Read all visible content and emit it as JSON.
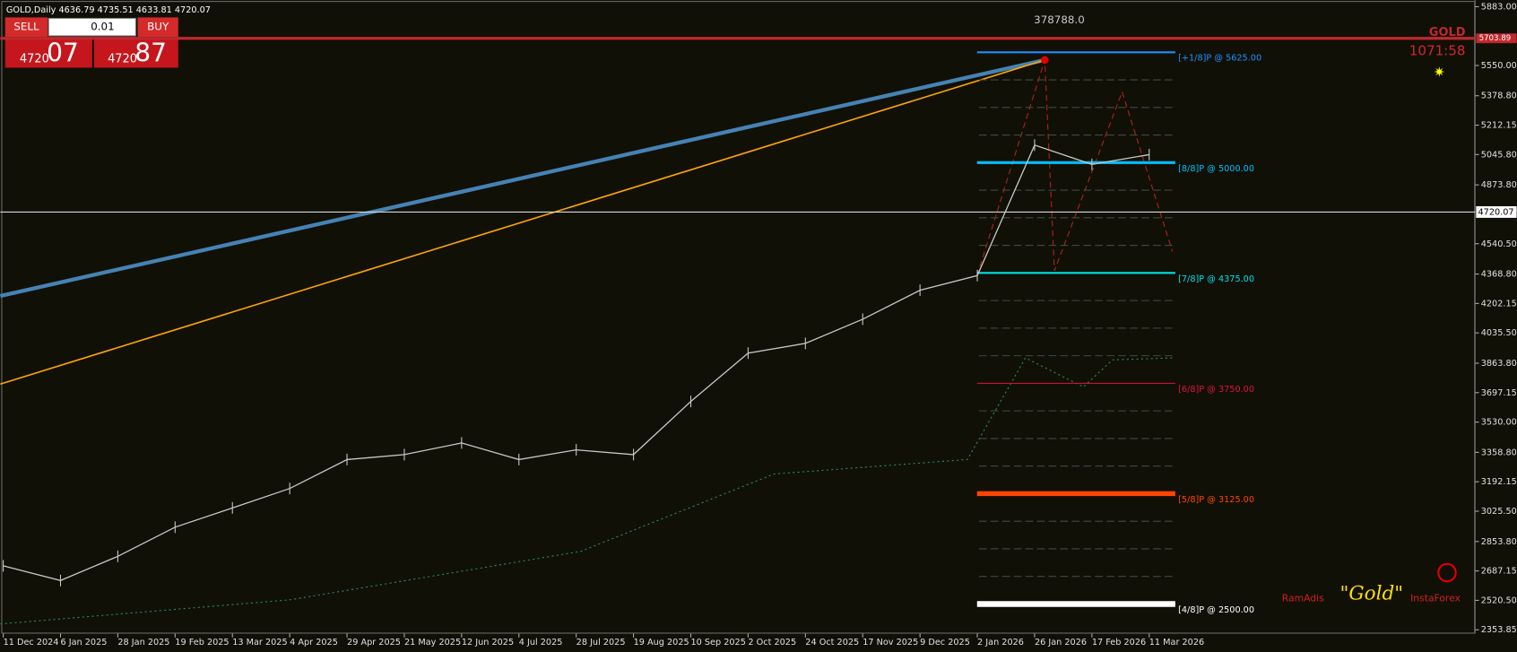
{
  "header": {
    "title": "GOLD,Daily  4636.79 4735.51 4633.81 4720.07"
  },
  "trade_panel": {
    "sell": "SELL",
    "buy": "BUY",
    "lot": "0.01",
    "bid_big": "4720",
    "bid_small": "07",
    "ask_big": "4720",
    "ask_small": "87"
  },
  "overlay": {
    "account": "378788.0",
    "symbol": "GOLD",
    "timer": "1071:58",
    "brand_left": "RamAdis",
    "brand_center": "\"Gold\"",
    "brand_right": "InstaForex"
  },
  "chart_data": {
    "type": "line",
    "color": "#c8c8c8",
    "x": [
      "11 Dec 2024",
      "6 Jan 2025",
      "28 Jan 2025",
      "19 Feb 2025",
      "13 Mar 2025",
      "4 Apr 2025",
      "29 Apr 2025",
      "21 May 2025",
      "12 Jun 2025",
      "4 Jul 2025",
      "28 Jul 2025",
      "19 Aug 2025",
      "10 Sep 2025",
      "2 Oct 2025",
      "24 Oct 2025",
      "17 Nov 2025",
      "9 Dec 2025",
      "2 Jan 2026",
      "26 Jan 2026",
      "17 Feb 2026",
      "11 Mar 2026"
    ],
    "values": [
      2716,
      2633,
      2770,
      2935,
      3044,
      3154,
      3318,
      3346,
      3412,
      3318,
      3373,
      3346,
      3647,
      3921,
      3976,
      4113,
      4277,
      4360,
      5099,
      4990,
      5045
    ],
    "ylim": [
      2228,
      5921
    ],
    "yticks": [
      {
        "value": 5883,
        "label": "5883.00"
      },
      {
        "value": 5550,
        "label": "5550.00"
      },
      {
        "value": 5378.8,
        "label": "5378.80"
      },
      {
        "value": 5212.15,
        "label": "5212.15"
      },
      {
        "value": 5045.8,
        "label": "5045.80"
      },
      {
        "value": 4873.8,
        "label": "4873.80"
      },
      {
        "value": 4540.5,
        "label": "4540.50"
      },
      {
        "value": 4368.8,
        "label": "4368.80"
      },
      {
        "value": 4202.15,
        "label": "4202.15"
      },
      {
        "value": 4035.5,
        "label": "4035.50"
      },
      {
        "value": 3863.8,
        "label": "3863.80"
      },
      {
        "value": 3697.15,
        "label": "3697.15"
      },
      {
        "value": 3530,
        "label": "3530.00"
      },
      {
        "value": 3358.8,
        "label": "3358.80"
      },
      {
        "value": 3192.15,
        "label": "3192.15"
      },
      {
        "value": 3025.5,
        "label": "3025.50"
      },
      {
        "value": 2853.8,
        "label": "2853.80"
      },
      {
        "value": 2687.15,
        "label": "2687.15"
      },
      {
        "value": 2520.5,
        "label": "2520.50"
      },
      {
        "value": 2353.85,
        "label": "2353.85"
      }
    ],
    "last_price": {
      "value": 4720.07,
      "label": "4720.07"
    },
    "alert_price": {
      "value": 5703.89,
      "label": "5703.89",
      "color": "#c0282d"
    },
    "levels": [
      {
        "name": "[+1/8]P @ 5625.00",
        "value": 5625,
        "color": "#1e90ff"
      },
      {
        "name": "[8/8]P @ 5000.00",
        "value": 5000,
        "color": "#00bfff"
      },
      {
        "name": "[7/8]P @ 4375.00",
        "value": 4375,
        "color": "#00e0e8"
      },
      {
        "name": "[6/8]P @ 3750.00",
        "value": 3750,
        "color": "#dc143c"
      },
      {
        "name": "[5/8]P @ 3125.00",
        "value": 3125,
        "color": "#ff4500"
      },
      {
        "name": "[4/8]P @ 2500.00",
        "value": 2500,
        "color": "#ffffff"
      }
    ]
  }
}
